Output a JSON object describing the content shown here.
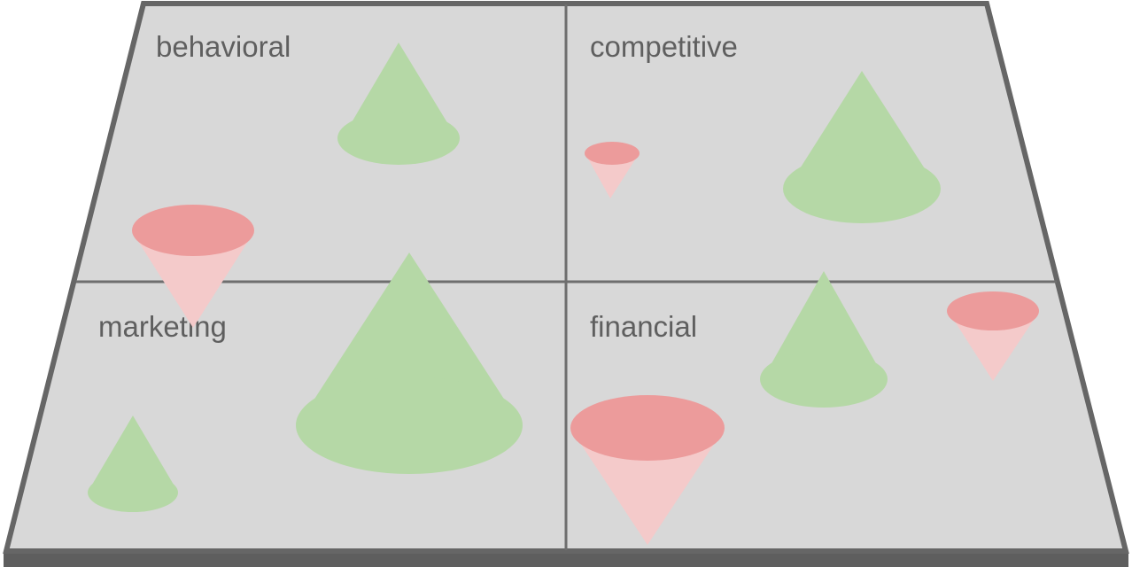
{
  "diagram": {
    "colors": {
      "board_fill": "#d8d8d8",
      "board_edge": "#666666",
      "board_front": "#5e5e5e",
      "divider": "#6e6e6e",
      "label": "#5f5f5f",
      "green_cone": "#b5d8a6",
      "red_cone_top": "#ec9b9b",
      "red_cone_body": "#f4caca"
    },
    "quadrants": [
      {
        "label": "behavioral"
      },
      {
        "label": "competitive"
      },
      {
        "label": "marketing"
      },
      {
        "label": "financial"
      }
    ],
    "cone_types": [
      "upright-green-cone",
      "inverted-red-cone"
    ]
  }
}
